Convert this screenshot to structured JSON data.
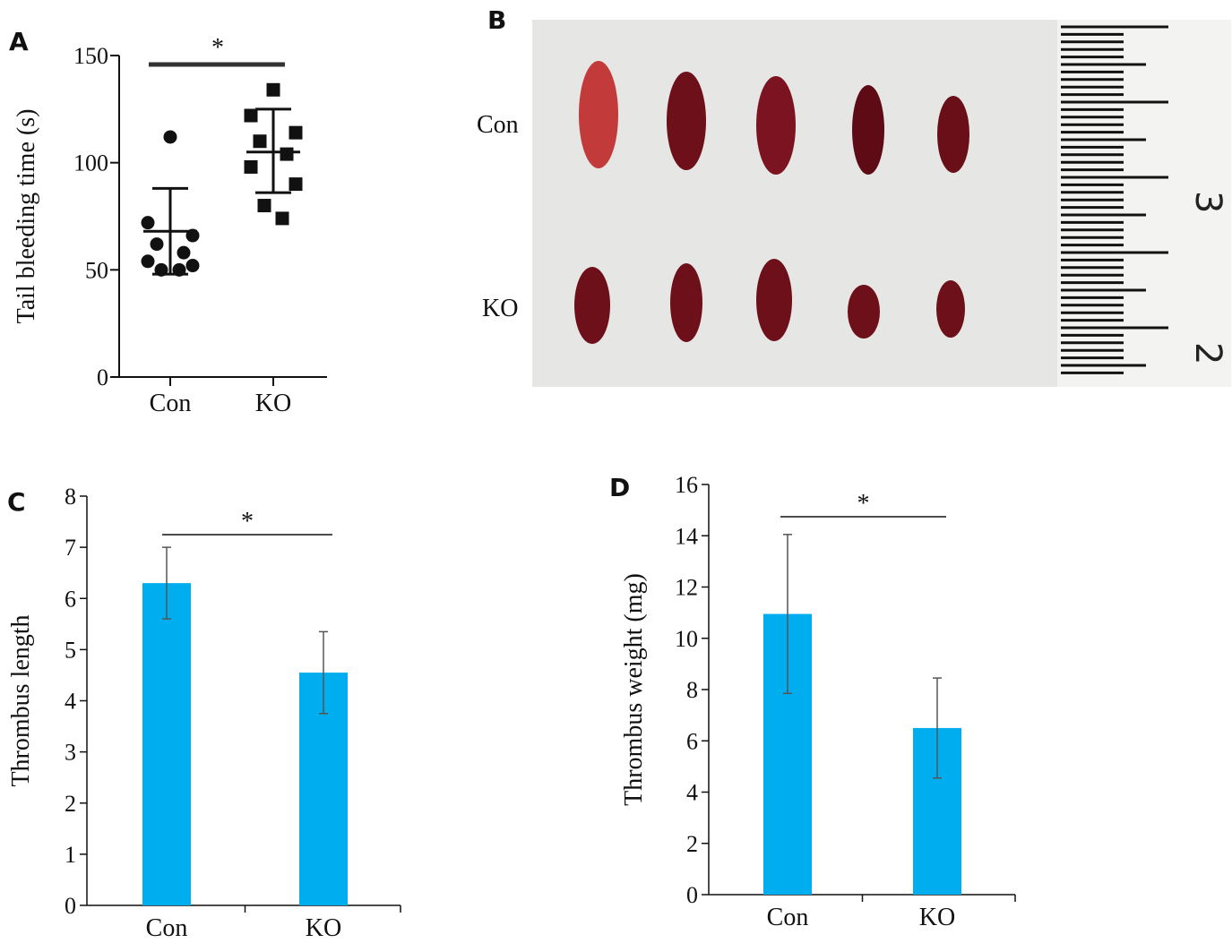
{
  "panels": {
    "A": "A",
    "B": "B",
    "C": "C",
    "D": "D"
  },
  "photo": {
    "row_labels": [
      "Con",
      "KO"
    ],
    "ruler_marks": [
      "3",
      "2"
    ],
    "colors": {
      "background": "#e6e7e5",
      "thrombus": "#7a0f1a",
      "ruler": "#f2f2f2"
    }
  },
  "chart_data": [
    {
      "panel": "A",
      "type": "scatter",
      "categories": [
        "Con",
        "KO"
      ],
      "ylabel": "Tail bleeding time (s)",
      "xlabel": "",
      "ylim": [
        0,
        150
      ],
      "yticks": [
        0,
        50,
        100,
        150
      ],
      "significance": "*",
      "series": [
        {
          "category": "Con",
          "marker": "circle",
          "mean": 68,
          "sd_low": 48,
          "sd_high": 88,
          "points": [
            112,
            72,
            66,
            62,
            58,
            54,
            52,
            50,
            50
          ]
        },
        {
          "category": "KO",
          "marker": "square",
          "mean": 105,
          "sd_low": 86,
          "sd_high": 125,
          "points": [
            134,
            122,
            114,
            110,
            104,
            98,
            90,
            80,
            74
          ]
        }
      ]
    },
    {
      "panel": "C",
      "type": "bar",
      "categories": [
        "Con",
        "KO"
      ],
      "values": [
        6.3,
        4.55
      ],
      "errors": [
        0.7,
        0.8
      ],
      "ylabel": "Thrombus length",
      "xlabel": "",
      "ylim": [
        0,
        8
      ],
      "yticks": [
        0,
        1,
        2,
        3,
        4,
        5,
        6,
        7,
        8
      ],
      "significance": "*",
      "bar_color": "#00adef"
    },
    {
      "panel": "D",
      "type": "bar",
      "categories": [
        "Con",
        "KO"
      ],
      "values": [
        10.95,
        6.5
      ],
      "errors": [
        3.1,
        1.95
      ],
      "ylabel": "Thrombus weight (mg)",
      "xlabel": "",
      "ylim": [
        0,
        16
      ],
      "yticks": [
        0,
        2,
        4,
        6,
        8,
        10,
        12,
        14,
        16
      ],
      "significance": "*",
      "bar_color": "#00adef"
    }
  ]
}
